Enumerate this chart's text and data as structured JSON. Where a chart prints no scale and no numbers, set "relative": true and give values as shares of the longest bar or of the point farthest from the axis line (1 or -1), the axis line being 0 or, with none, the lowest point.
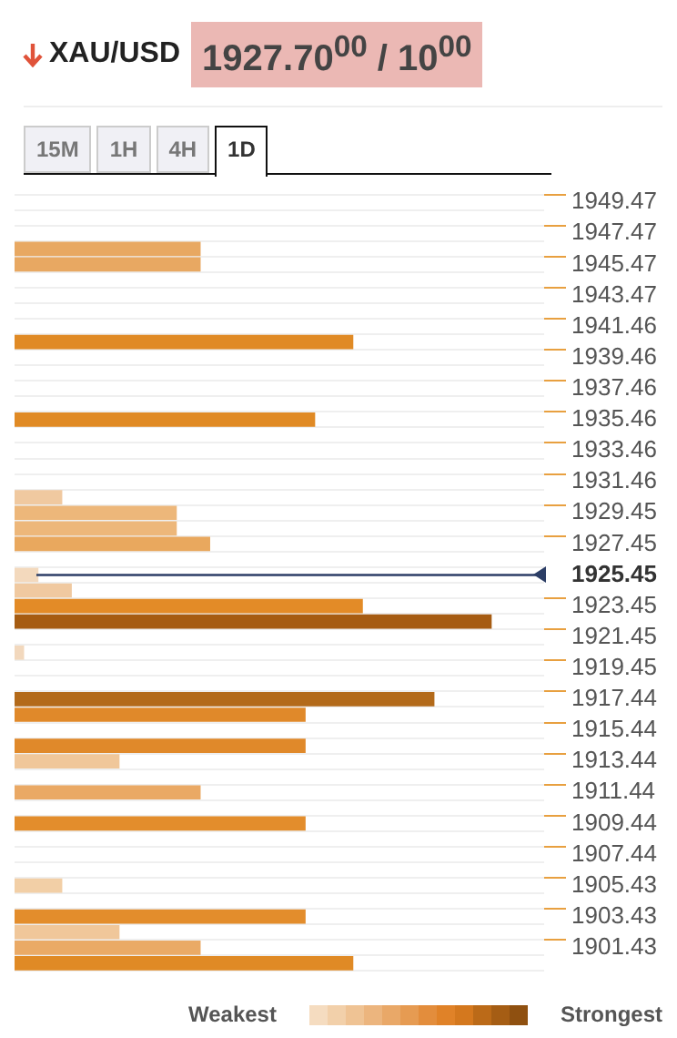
{
  "chart_data": {
    "type": "bar",
    "orientation": "horizontal",
    "relative": true,
    "title": "XAU/USD",
    "subtitle": "1927.70$^{00}$ / 10$^{00}$",
    "annotations": [
      "15M",
      "1H",
      "4H",
      "1D",
      "Weakest",
      "Strongest"
    ],
    "categories": [
      "1949.47",
      null,
      "1947.47",
      null,
      "1945.47",
      null,
      "1943.47",
      null,
      "1941.46",
      null,
      "1939.46",
      null,
      "1937.46",
      null,
      "1935.46",
      null,
      "1933.46",
      null,
      "1931.46",
      null,
      "1929.45",
      null,
      "1927.45",
      null,
      "1925.45",
      null,
      "1923.45",
      null,
      "1921.45",
      null,
      "1919.45",
      null,
      "1917.44",
      null,
      "1915.44",
      null,
      "1913.44",
      null,
      "1911.44",
      null,
      "1909.44",
      null,
      "1907.44",
      null,
      "1905.43",
      null,
      "1903.43",
      null,
      "1901.43",
      null
    ],
    "values": [
      null,
      null,
      null,
      0.39,
      0.39,
      null,
      null,
      null,
      null,
      0.71,
      null,
      null,
      null,
      null,
      0.63,
      null,
      null,
      null,
      null,
      0.1,
      0.34,
      0.34,
      0.41,
      null,
      0.05,
      0.12,
      0.73,
      1,
      null,
      0.02,
      null,
      null,
      0.88,
      0.61,
      null,
      0.61,
      0.22,
      null,
      0.39,
      null,
      0.61,
      null,
      null,
      null,
      0.1,
      null,
      0.61,
      0.22,
      0.39,
      0.71
    ],
    "colors": [
      null,
      null,
      null,
      "#e8a862",
      "#e8a862",
      null,
      null,
      null,
      null,
      "#e08a25",
      null,
      null,
      null,
      null,
      "#e08a25",
      null,
      null,
      null,
      null,
      "#f0c9a0",
      "#edb77a",
      "#edb77a",
      "#e9a85e",
      null,
      "#f3d9bd",
      "#f0c9a0",
      "#e38b27",
      "#a65c12",
      null,
      "#f2d8bd",
      null,
      null,
      "#b36a1a",
      "#e0892a",
      null,
      "#e0892a",
      "#f0c79a",
      null,
      "#eaa965",
      null,
      "#e38d2c",
      null,
      null,
      null,
      "#f2cfa6",
      null,
      "#e38d2c",
      "#f0c79a",
      "#eaaa66",
      "#e08a25"
    ],
    "grid": true,
    "ref_lines": [
      {
        "axis": "y",
        "value": "1925.45",
        "color": "#2c3e66"
      }
    ]
  }
}
